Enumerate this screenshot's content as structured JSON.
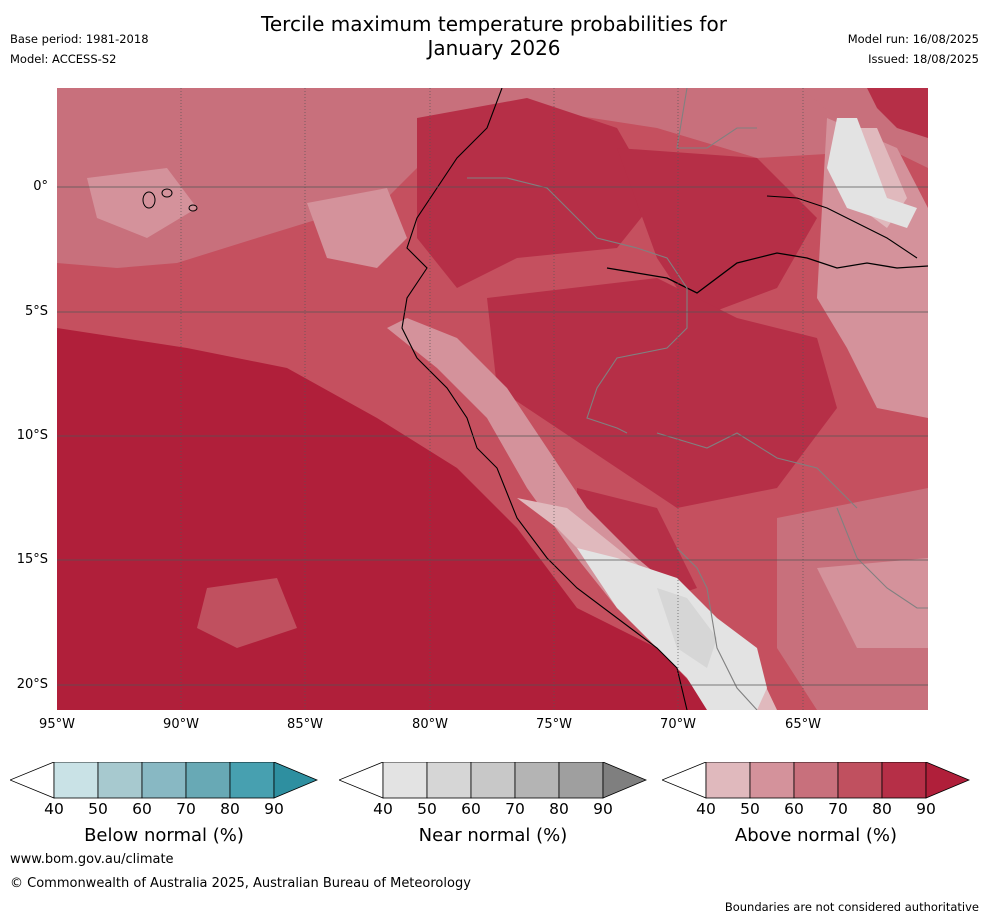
{
  "title_line1": "Tercile maximum temperature probabilities for",
  "title_line2": "January 2026",
  "meta_left": {
    "base_period": "Base period: 1981-2018",
    "model": "Model: ACCESS-S2"
  },
  "meta_right": {
    "model_run": "Model run: 16/08/2025",
    "issued": "Issued: 18/08/2025"
  },
  "lat_labels": [
    "0°",
    "5°S",
    "10°S",
    "15°S",
    "20°S"
  ],
  "lon_labels": [
    "95°W",
    "90°W",
    "85°W",
    "80°W",
    "75°W",
    "70°W",
    "65°W"
  ],
  "colorbars": {
    "below": {
      "title": "Below normal (%)",
      "ticks": [
        "40",
        "50",
        "60",
        "70",
        "80",
        "90"
      ],
      "colors": [
        "#ffffff",
        "#c9e2e6",
        "#a7c9cf",
        "#88b8c3",
        "#68a9b5",
        "#47a0b0",
        "#2e8fa0"
      ]
    },
    "near": {
      "title": "Near normal (%)",
      "ticks": [
        "40",
        "50",
        "60",
        "70",
        "80",
        "90"
      ],
      "colors": [
        "#ffffff",
        "#e3e3e3",
        "#d6d6d6",
        "#c8c8c8",
        "#b4b4b4",
        "#9f9f9f",
        "#7f7f7f"
      ]
    },
    "above": {
      "title": "Above normal (%)",
      "ticks": [
        "40",
        "50",
        "60",
        "70",
        "80",
        "90"
      ],
      "colors": [
        "#ffffff",
        "#e0b9bd",
        "#d4929b",
        "#c8707c",
        "#c0505f",
        "#b62f47",
        "#b01f3a"
      ]
    }
  },
  "footer": {
    "website": "www.bom.gov.au/climate",
    "copyright": "© Commonwealth of Australia 2025, Australian Bureau of Meteorology",
    "disclaimer": "Boundaries are not considered authoritative"
  }
}
